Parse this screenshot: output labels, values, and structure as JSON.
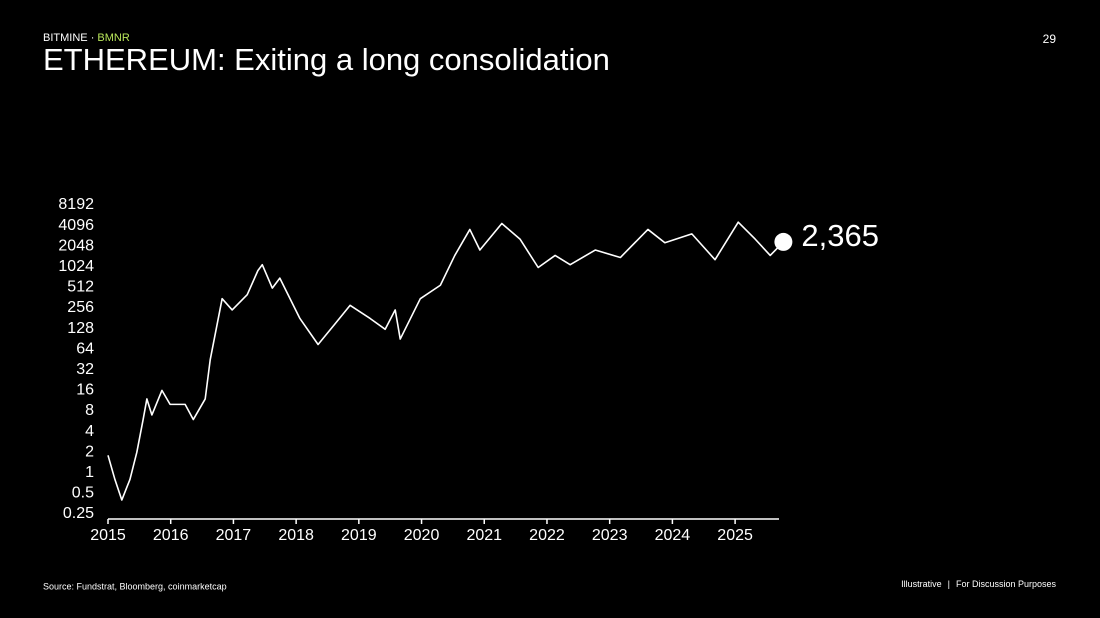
{
  "header": {
    "brand": "BITMINE",
    "separator": "·",
    "ticker": "BMNR",
    "title": "ETHEREUM: Exiting a long consolidation",
    "page": 29
  },
  "chart_data": {
    "type": "line",
    "color": "#ffffff",
    "yscale": "log",
    "x": [
      2015.0,
      2015.11,
      2015.22,
      2015.35,
      2015.46,
      2015.56,
      2015.62,
      2015.7,
      2015.86,
      2015.99,
      2016.23,
      2016.36,
      2016.55,
      2016.63,
      2016.82,
      2016.98,
      2017.22,
      2017.39,
      2017.46,
      2017.62,
      2017.74,
      2018.06,
      2018.35,
      2018.62,
      2018.86,
      2019.18,
      2019.42,
      2019.58,
      2019.66,
      2019.98,
      2020.3,
      2020.53,
      2020.77,
      2020.93,
      2021.28,
      2021.57,
      2021.86,
      2022.13,
      2022.37,
      2022.77,
      2023.17,
      2023.61,
      2023.88,
      2024.31,
      2024.68,
      2025.05,
      2025.32,
      2025.56,
      2025.77
    ],
    "values": [
      1.8,
      0.8,
      0.4,
      0.8,
      2,
      6,
      12,
      7,
      16,
      10,
      10,
      6,
      12,
      45,
      350,
      240,
      400,
      900,
      1100,
      500,
      700,
      180,
      75,
      150,
      280,
      180,
      125,
      240,
      90,
      350,
      550,
      1500,
      3600,
      1800,
      4400,
      2600,
      1000,
      1500,
      1100,
      1800,
      1400,
      3600,
      2300,
      3100,
      1300,
      4600,
      2600,
      1500,
      2365
    ],
    "value_labels": [
      null,
      null,
      null,
      null,
      null,
      null,
      null,
      null,
      null,
      null,
      null,
      null,
      null,
      null,
      null,
      null,
      null,
      null,
      null,
      null,
      null,
      null,
      null,
      null,
      null,
      null,
      null,
      null,
      null,
      null,
      null,
      null,
      null,
      null,
      null,
      null,
      null,
      null,
      null,
      null,
      null,
      null,
      null,
      null,
      null,
      null,
      null,
      null,
      "2,365"
    ],
    "xlim": [
      2015,
      2025.7
    ],
    "xticks": [
      2015,
      2016,
      2017,
      2018,
      2019,
      2020,
      2021,
      2022,
      2023,
      2024,
      2025
    ],
    "ylim": [
      0.25,
      8192
    ],
    "yticks": [
      0.25,
      0.5,
      1,
      2,
      4,
      8,
      16,
      32,
      64,
      128,
      256,
      512,
      1024,
      2048,
      4096,
      8192
    ]
  },
  "footer": {
    "source": "Source: Fundstrat, Bloomberg, coinmarketcap",
    "note": "Illustrative",
    "separator": "|",
    "purpose": "For Discussion Purposes"
  }
}
